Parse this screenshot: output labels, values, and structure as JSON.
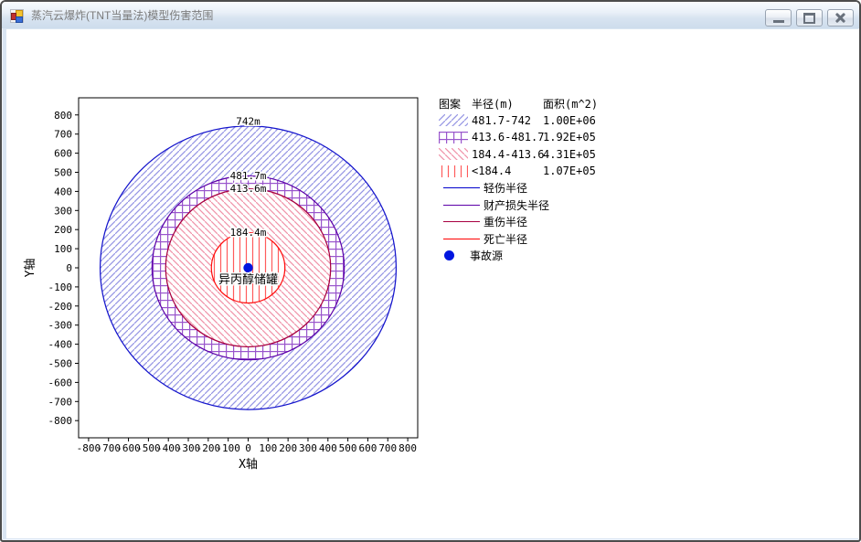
{
  "window": {
    "title": "蒸汽云爆炸(TNT当量法)模型伤害范围",
    "controls": [
      {
        "name": "minimize"
      },
      {
        "name": "maximize"
      },
      {
        "name": "close"
      }
    ]
  },
  "chart_data": {
    "type": "area",
    "subtype": "concentric-damage-zones",
    "xlabel": "X轴",
    "ylabel": "Y轴",
    "xlim": [
      -850,
      850
    ],
    "ylim": [
      -890,
      890
    ],
    "x_ticks": [
      -800,
      -700,
      -600,
      -500,
      -400,
      -300,
      -200,
      -100,
      0,
      100,
      200,
      300,
      400,
      500,
      600,
      700,
      800
    ],
    "y_ticks": [
      -800,
      -700,
      -600,
      -500,
      -400,
      -300,
      -200,
      -100,
      0,
      100,
      200,
      300,
      400,
      500,
      600,
      700,
      800
    ],
    "grid": false,
    "rings": [
      {
        "radius_m": 742,
        "label": "742m",
        "range_label": "481.7-742",
        "area_label": "1.00E+06",
        "stroke": "#1414CC",
        "hatch": "diagonal-up",
        "hatch_color": "#9494E4",
        "meaning": "轻伤半径"
      },
      {
        "radius_m": 481.7,
        "label": "481.7m",
        "range_label": "413.6-481.7",
        "area_label": "1.92E+05",
        "stroke": "#5C00A8",
        "hatch": "grid",
        "hatch_color": "#9955CC",
        "meaning": "财产损失半径"
      },
      {
        "radius_m": 413.6,
        "label": "413.6m",
        "range_label": "184.4-413.6",
        "area_label": "4.31E+05",
        "stroke": "#A80040",
        "hatch": "diagonal-down",
        "hatch_color": "#F092A8",
        "meaning": "重伤半径"
      },
      {
        "radius_m": 184.4,
        "label": "184.4m",
        "range_label": "<184.4",
        "area_label": "1.07E+05",
        "stroke": "#FF1010",
        "hatch": "vertical",
        "hatch_color": "#FF5C5C",
        "meaning": "死亡半径"
      }
    ],
    "source": {
      "x": 0,
      "y": 0,
      "label": "事故源",
      "marker_color": "#0016E0"
    },
    "center_label": "异丙醇储罐"
  },
  "legend": {
    "headers": [
      "图案",
      "半径(m)",
      "面积(m^2)"
    ],
    "line_entries": [
      {
        "label": "轻伤半径",
        "color": "#0000CC"
      },
      {
        "label": "财产损失半径",
        "color": "#5C00A8"
      },
      {
        "label": "重伤半径",
        "color": "#A80040"
      },
      {
        "label": "死亡半径",
        "color": "#FF0000"
      }
    ],
    "source_entry": {
      "label": "事故源",
      "color": "#0016E0"
    }
  }
}
